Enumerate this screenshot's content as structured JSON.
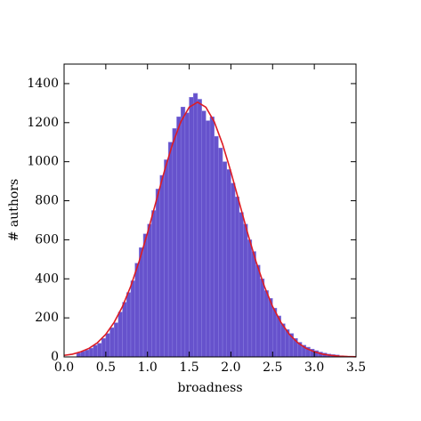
{
  "chart_data": {
    "type": "histogram",
    "xlabel": "broadness",
    "ylabel": "# authors",
    "bins": [
      0.15,
      0.2,
      0.25,
      0.3,
      0.35,
      0.4,
      0.45,
      0.5,
      0.55,
      0.6,
      0.65,
      0.7,
      0.75,
      0.8,
      0.85,
      0.9,
      0.95,
      1.0,
      1.05,
      1.1,
      1.15,
      1.2,
      1.25,
      1.3,
      1.35,
      1.4,
      1.45,
      1.5,
      1.55,
      1.6,
      1.65,
      1.7,
      1.75,
      1.8,
      1.85,
      1.9,
      1.95,
      2.0,
      2.05,
      2.1,
      2.15,
      2.2,
      2.25,
      2.3,
      2.35,
      2.4,
      2.45,
      2.5,
      2.55,
      2.6,
      2.65,
      2.7,
      2.75,
      2.8,
      2.85,
      2.9,
      2.95,
      3.0,
      3.05,
      3.1,
      3.15,
      3.2,
      3.25,
      3.3,
      3.35
    ],
    "values": [
      20,
      28,
      35,
      45,
      60,
      70,
      95,
      120,
      150,
      175,
      230,
      280,
      330,
      390,
      480,
      560,
      630,
      680,
      750,
      860,
      930,
      1010,
      1100,
      1170,
      1230,
      1280,
      1250,
      1330,
      1350,
      1320,
      1260,
      1210,
      1230,
      1130,
      1070,
      1000,
      960,
      890,
      820,
      740,
      680,
      600,
      540,
      470,
      400,
      340,
      300,
      250,
      210,
      170,
      140,
      120,
      95,
      75,
      60,
      50,
      40,
      32,
      25,
      20,
      15,
      12,
      10,
      6
    ],
    "color": "#6652cc",
    "curve": {
      "x": [
        0,
        0.1,
        0.2,
        0.3,
        0.4,
        0.5,
        0.6,
        0.7,
        0.8,
        0.9,
        1.0,
        1.1,
        1.2,
        1.3,
        1.4,
        1.5,
        1.6,
        1.7,
        1.8,
        1.9,
        2.0,
        2.1,
        2.2,
        2.3,
        2.4,
        2.5,
        2.6,
        2.7,
        2.8,
        2.9,
        3.0,
        3.1,
        3.2,
        3.3,
        3.4,
        3.5
      ],
      "values": [
        8,
        14,
        26,
        44,
        73,
        116,
        177,
        258,
        363,
        490,
        635,
        792,
        948,
        1090,
        1205,
        1279,
        1305,
        1279,
        1205,
        1090,
        948,
        792,
        635,
        490,
        363,
        258,
        177,
        116,
        73,
        44,
        26,
        14,
        8,
        4,
        2,
        1
      ],
      "color": "#dd1c24"
    },
    "xlim": [
      0,
      3.5
    ],
    "ylim": [
      0,
      1500
    ],
    "xticks": [
      {
        "value": 0,
        "label": "0.0"
      },
      0.5,
      {
        "value": 1,
        "label": "1.0"
      },
      1.5,
      {
        "value": 2,
        "label": "2.0"
      },
      2.5,
      {
        "value": 3,
        "label": "3.0"
      },
      3.5
    ],
    "yticks": [
      0,
      200,
      400,
      600,
      800,
      1000,
      1200,
      1400
    ]
  }
}
